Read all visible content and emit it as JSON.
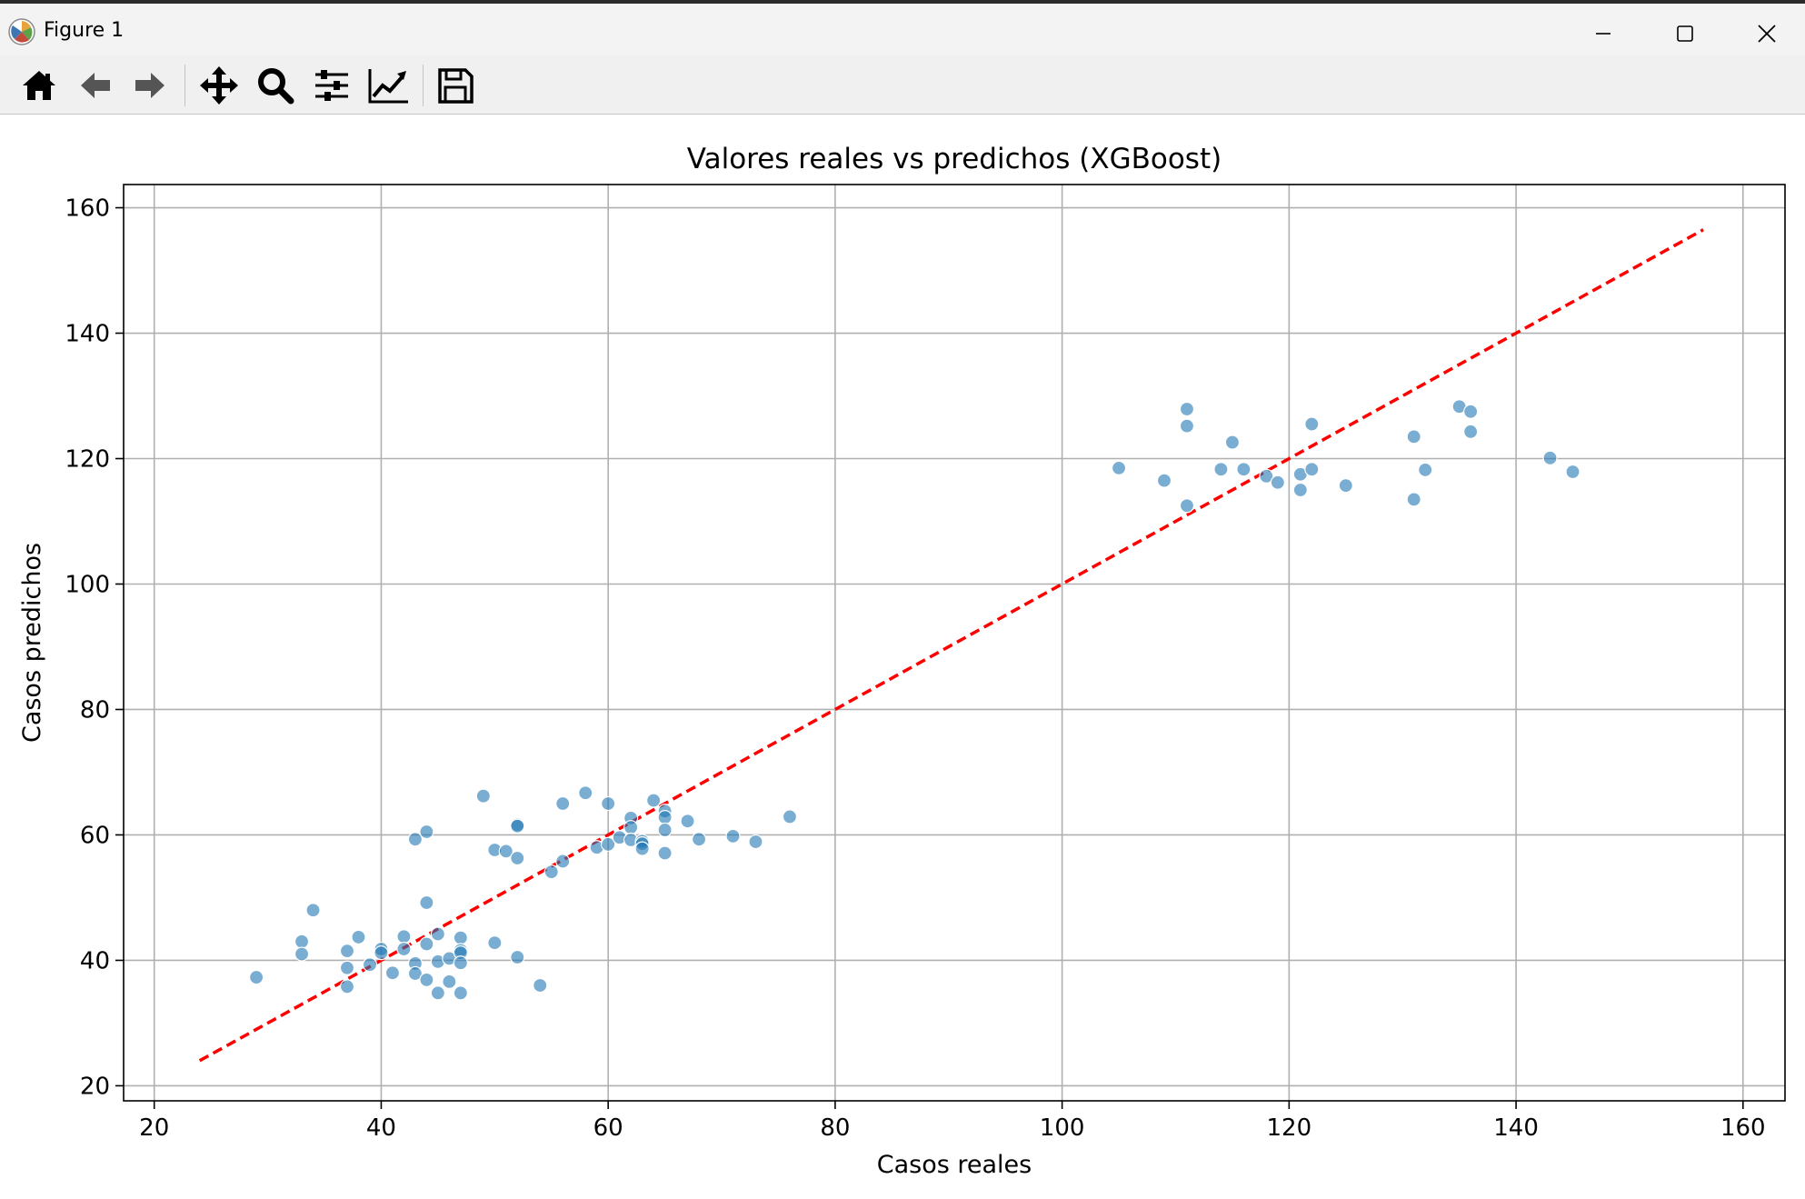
{
  "window": {
    "title": "Figure 1"
  },
  "toolbar": {
    "buttons": [
      {
        "icon": "home-icon",
        "action": "Home"
      },
      {
        "icon": "back-arrow-icon",
        "action": "Back"
      },
      {
        "icon": "forward-arrow-icon",
        "action": "Forward"
      },
      {
        "icon": "pan-move-icon",
        "action": "Pan"
      },
      {
        "icon": "zoom-magnifier-icon",
        "action": "Zoom"
      },
      {
        "icon": "configure-subplots-icon",
        "action": "Subplots"
      },
      {
        "icon": "edit-axis-icon",
        "action": "Customize"
      },
      {
        "icon": "save-disk-icon",
        "action": "Save"
      }
    ]
  },
  "colors": {
    "points": "#1f77b4",
    "diagonal": "#ff0000",
    "grid": "#b0b0b0"
  },
  "chart_data": {
    "type": "scatter",
    "title": "Valores reales vs predichos (XGBoost)",
    "xlabel": "Casos reales",
    "ylabel": "Casos predichos",
    "xlim": [
      17.3,
      163.7
    ],
    "ylim": [
      17.6,
      163.7
    ],
    "xticks": [
      20,
      40,
      60,
      80,
      100,
      120,
      140,
      160
    ],
    "yticks": [
      20,
      40,
      60,
      80,
      100,
      120,
      140,
      160
    ],
    "grid": true,
    "reference_line": {
      "style": "dashed",
      "color": "red",
      "x": [
        24,
        156.5
      ],
      "y": [
        24,
        156.5
      ]
    },
    "points": [
      [
        29,
        37.3
      ],
      [
        33,
        43
      ],
      [
        33,
        41
      ],
      [
        34,
        48
      ],
      [
        37,
        41.5
      ],
      [
        37,
        38.8
      ],
      [
        37,
        35.8
      ],
      [
        38,
        43.7
      ],
      [
        39,
        39.3
      ],
      [
        40,
        41.8
      ],
      [
        40,
        41.2
      ],
      [
        41,
        38
      ],
      [
        42,
        43.8
      ],
      [
        42,
        41.8
      ],
      [
        43,
        59.3
      ],
      [
        43,
        39.5
      ],
      [
        43,
        37.9
      ],
      [
        44,
        60.5
      ],
      [
        44,
        49.2
      ],
      [
        44,
        42.6
      ],
      [
        44,
        36.9
      ],
      [
        45,
        44.2
      ],
      [
        45,
        39.8
      ],
      [
        45,
        34.8
      ],
      [
        46,
        40.3
      ],
      [
        46,
        36.6
      ],
      [
        47,
        43.6
      ],
      [
        47,
        41.6
      ],
      [
        47,
        41.2
      ],
      [
        47,
        39.6
      ],
      [
        47,
        34.8
      ],
      [
        49,
        66.2
      ],
      [
        50,
        57.6
      ],
      [
        50,
        42.8
      ],
      [
        51,
        57.4
      ],
      [
        52,
        61.6
      ],
      [
        52,
        61.4
      ],
      [
        52,
        56.3
      ],
      [
        52,
        40.5
      ],
      [
        54,
        36
      ],
      [
        55,
        54.1
      ],
      [
        56,
        65
      ],
      [
        56,
        55.8
      ],
      [
        58,
        66.7
      ],
      [
        59,
        58
      ],
      [
        60,
        65
      ],
      [
        60,
        58.5
      ],
      [
        61,
        59.6
      ],
      [
        62,
        62.7
      ],
      [
        62,
        61.2
      ],
      [
        62,
        59.2
      ],
      [
        63,
        59
      ],
      [
        63,
        58.6
      ],
      [
        63,
        57.8
      ],
      [
        64,
        65.5
      ],
      [
        65,
        63.8
      ],
      [
        65,
        62.8
      ],
      [
        65,
        60.8
      ],
      [
        65,
        57.1
      ],
      [
        67,
        62.2
      ],
      [
        68,
        59.3
      ],
      [
        71,
        59.8
      ],
      [
        73,
        58.9
      ],
      [
        76,
        62.9
      ],
      [
        105,
        118.5
      ],
      [
        109,
        116.5
      ],
      [
        111,
        127.9
      ],
      [
        111,
        125.2
      ],
      [
        111,
        112.5
      ],
      [
        114,
        118.3
      ],
      [
        115,
        122.6
      ],
      [
        116,
        118.3
      ],
      [
        118,
        117.2
      ],
      [
        119,
        116.2
      ],
      [
        121,
        117.5
      ],
      [
        121,
        115
      ],
      [
        122,
        125.5
      ],
      [
        122,
        118.3
      ],
      [
        125,
        115.7
      ],
      [
        131,
        123.5
      ],
      [
        131,
        113.5
      ],
      [
        132,
        118.2
      ],
      [
        135,
        128.3
      ],
      [
        136,
        127.5
      ],
      [
        136,
        124.3
      ],
      [
        143,
        120.1
      ],
      [
        145,
        117.9
      ]
    ]
  }
}
